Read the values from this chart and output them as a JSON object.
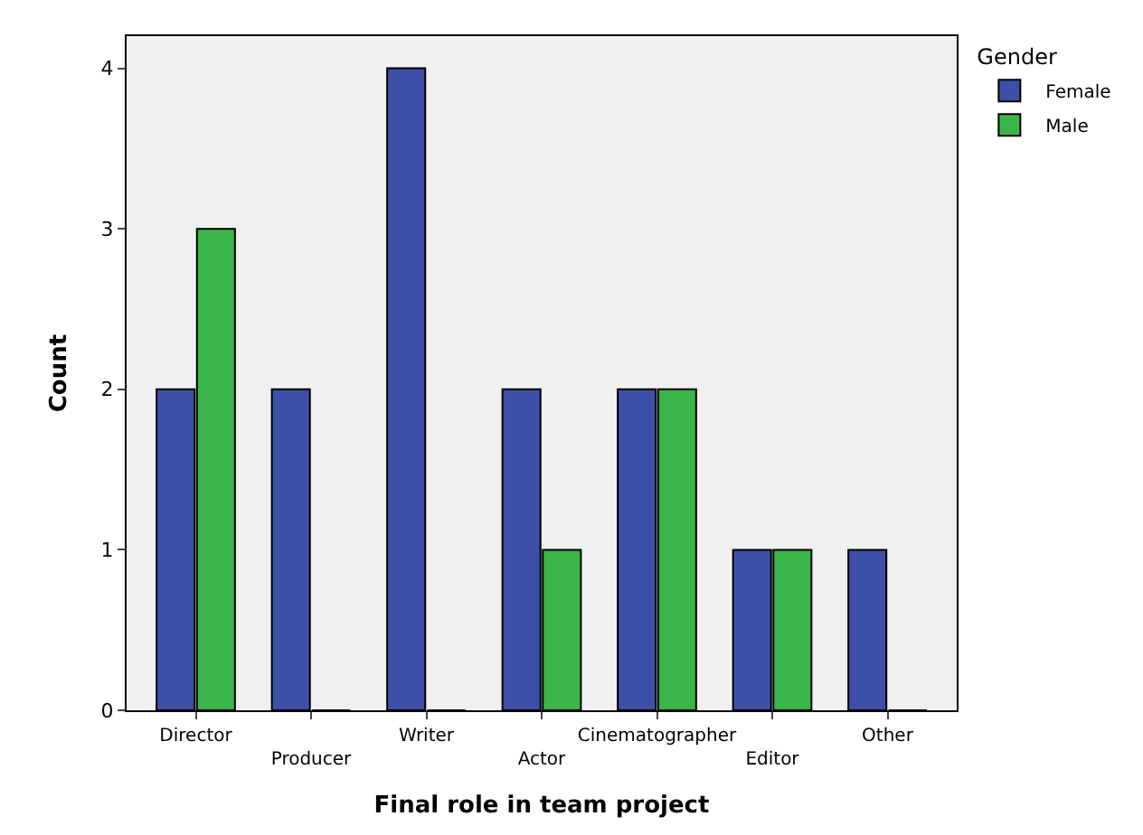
{
  "chart_data": {
    "type": "bar",
    "xlabel": "Final role in team project",
    "ylabel": "Count",
    "legend_title": "Gender",
    "categories": [
      "Director",
      "Producer",
      "Writer",
      "Actor",
      "Cinematographer",
      "Editor",
      "Other"
    ],
    "series": [
      {
        "name": "Female",
        "color": "#3e4fa8",
        "values": [
          2,
          2,
          4,
          2,
          2,
          1,
          1
        ]
      },
      {
        "name": "Male",
        "color": "#3ab54a",
        "values": [
          3,
          0,
          0,
          1,
          2,
          1,
          0
        ]
      }
    ],
    "ylim": [
      0,
      4.2
    ],
    "yticks": [
      0,
      1,
      2,
      3,
      4
    ],
    "grid": false,
    "legend": "top right"
  }
}
